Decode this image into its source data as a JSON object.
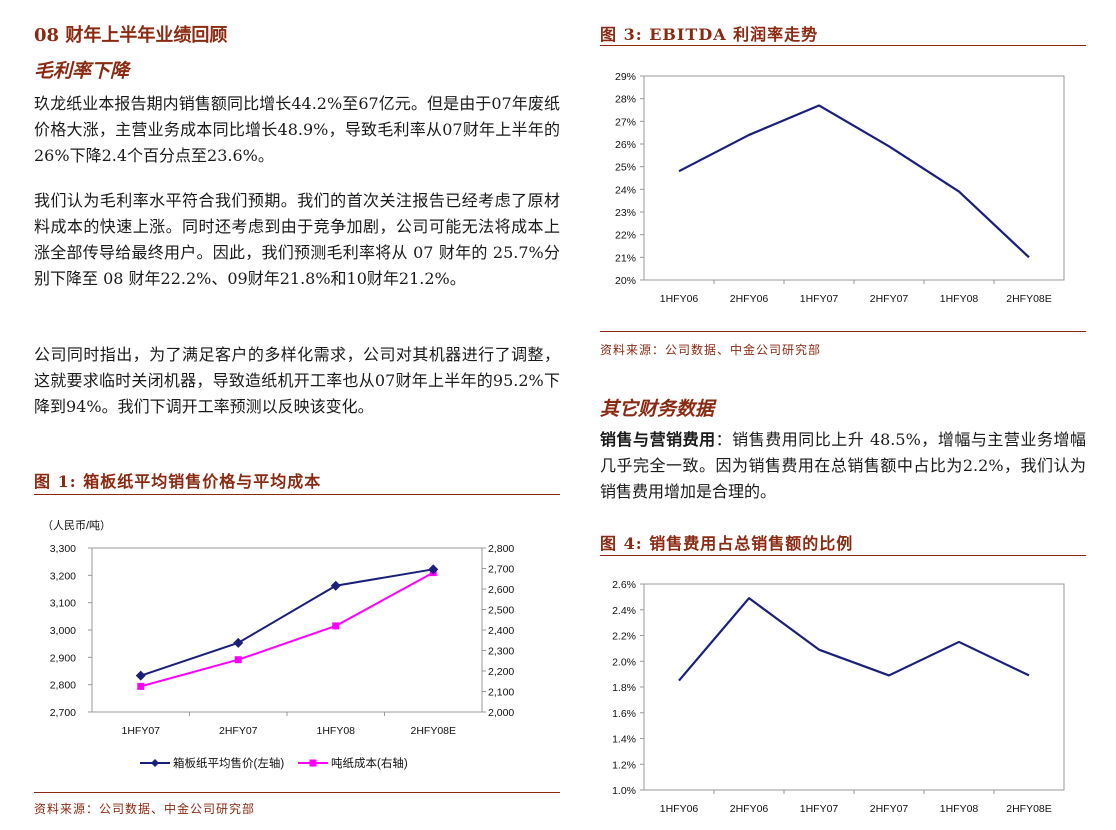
{
  "left": {
    "section_title_num": "08",
    "section_title_rest": "财年上半年业绩回顾",
    "subheading": "毛利率下降",
    "paragraphs": [
      "玖龙纸业本报告期内销售额同比增长44.2%至67亿元。但是由于07年废纸价格大涨，主营业务成本同比增长48.9%，导致毛利率从07财年上半年的26%下降2.4个百分点至23.6%。",
      "我们认为毛利率水平符合我们预期。我们的首次关注报告已经考虑了原材料成本的快速上涨。同时还考虑到由于竞争加剧，公司可能无法将成本上涨全部传导给最终用户。因此，我们预测毛利率将从 07 财年的 25.7%分别下降至 08 财年22.2%、09财年21.8%和10财年21.2%。",
      "公司同时指出，为了满足客户的多样化需求，公司对其机器进行了调整，这就要求临时关闭机器，导致造纸机开工率也从07财年上半年的95.2%下降到94%。我们下调开工率预测以反映该变化。"
    ],
    "figure1": {
      "label": "图 1:",
      "title": "箱板纸平均销售价格与平均成本",
      "source": "资料来源：公司数据、中金公司研究部"
    }
  },
  "right": {
    "figure3": {
      "label": "图 3:",
      "title": "EBITDA 利润率走势",
      "source": "资料来源：公司数据、中金公司研究部"
    },
    "subheading": "其它财务数据",
    "para_lead": "销售与营销费用",
    "para_body": "：销售费用同比上升 48.5%，增幅与主营业务增幅几乎完全一致。因为销售费用在总销售额中占比为2.2%，我们认为销售费用增加是合理的。",
    "figure4": {
      "label": "图 4:",
      "title": "销售费用占总销售额的比例"
    }
  },
  "colors": {
    "accent": "#8b2a12",
    "navy": "#1a1f7a",
    "magenta": "#ff00ff"
  },
  "chart_data": [
    {
      "id": "fig1",
      "type": "line",
      "title": "箱板纸平均销售价格与平均成本",
      "unit_label": "（人民币/吨）",
      "categories": [
        "1HFY07",
        "2HFY07",
        "1HFY08",
        "2HFY08E"
      ],
      "series": [
        {
          "name": "箱板纸平均售价(左轴)",
          "axis": "left",
          "values": [
            2833,
            2953,
            3162,
            3222
          ]
        },
        {
          "name": "吨纸成本(右轴)",
          "axis": "right",
          "values": [
            2125,
            2255,
            2420,
            2680
          ]
        }
      ],
      "ylim_left": [
        2700,
        3300
      ],
      "yticks_left": [
        "2,700",
        "2,800",
        "2,900",
        "3,000",
        "3,100",
        "3,200",
        "3,300"
      ],
      "ylim_right": [
        2000,
        2800
      ],
      "yticks_right": [
        "2,000",
        "2,100",
        "2,200",
        "2,300",
        "2,400",
        "2,500",
        "2,600",
        "2,700",
        "2,800"
      ],
      "legend": "bottom"
    },
    {
      "id": "fig3",
      "type": "line",
      "title": "EBITDA 利润率走势",
      "categories": [
        "1HFY06",
        "2HFY06",
        "1HFY07",
        "2HFY07",
        "1HFY08",
        "2HFY08E"
      ],
      "series": [
        {
          "name": "EBITDA利润率",
          "values": [
            24.8,
            26.4,
            27.7,
            25.9,
            23.9,
            21.0
          ]
        }
      ],
      "ylim": [
        20,
        29
      ],
      "yticks": [
        "20%",
        "21%",
        "22%",
        "23%",
        "24%",
        "25%",
        "26%",
        "27%",
        "28%",
        "29%"
      ]
    },
    {
      "id": "fig4",
      "type": "line",
      "title": "销售费用占总销售额的比例",
      "categories": [
        "1HFY06",
        "2HFY06",
        "1HFY07",
        "2HFY07",
        "1HFY08",
        "2HFY08E"
      ],
      "series": [
        {
          "name": "销售费用占比",
          "values": [
            1.85,
            2.49,
            2.09,
            1.89,
            2.15,
            1.89
          ]
        }
      ],
      "ylim": [
        1.0,
        2.6
      ],
      "yticks": [
        "1.0%",
        "1.2%",
        "1.4%",
        "1.6%",
        "1.8%",
        "2.0%",
        "2.2%",
        "2.4%",
        "2.6%"
      ]
    }
  ]
}
